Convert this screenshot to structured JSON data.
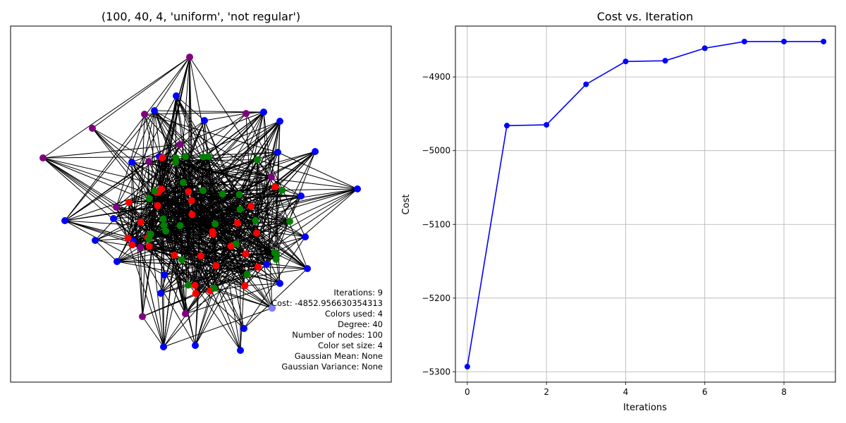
{
  "chart_data": [
    {
      "type": "network",
      "title": "(100, 40, 4, 'uniform', 'not regular')",
      "node_colors": [
        "red",
        "green",
        "blue",
        "purple"
      ],
      "info": {
        "iterations": "Iterations: 9",
        "cost": "Cost: -4852.956630354313",
        "colors_used": "Colors used: 4",
        "degree": "Degree: 40",
        "num_nodes": "Number of nodes: 100",
        "color_set_size": "Color set size: 4",
        "gaussian_mean": "Gaussian Mean: None",
        "gaussian_variance": "Gaussian Variance: None"
      }
    },
    {
      "type": "line",
      "title": "Cost vs. Iteration",
      "xlabel": "Iterations",
      "ylabel": "Cost",
      "x": [
        0,
        1,
        2,
        3,
        4,
        5,
        6,
        7,
        8,
        9
      ],
      "series": [
        {
          "values": [
            -5293,
            -4966,
            -4965,
            -4910,
            -4879,
            -4878,
            -4861,
            -4852,
            -4852,
            -4852
          ],
          "color": "#0000ff"
        }
      ],
      "xlim": [
        -0.3,
        9.3
      ],
      "ylim": [
        -5314,
        -4831
      ],
      "xticks": [
        0,
        2,
        4,
        6,
        8
      ],
      "yticks": [
        -5300,
        -5200,
        -5100,
        -5000,
        -4900
      ],
      "ytick_labels": [
        "−5300",
        "−5200",
        "−5100",
        "−5000",
        "−4900"
      ],
      "grid": true
    }
  ]
}
